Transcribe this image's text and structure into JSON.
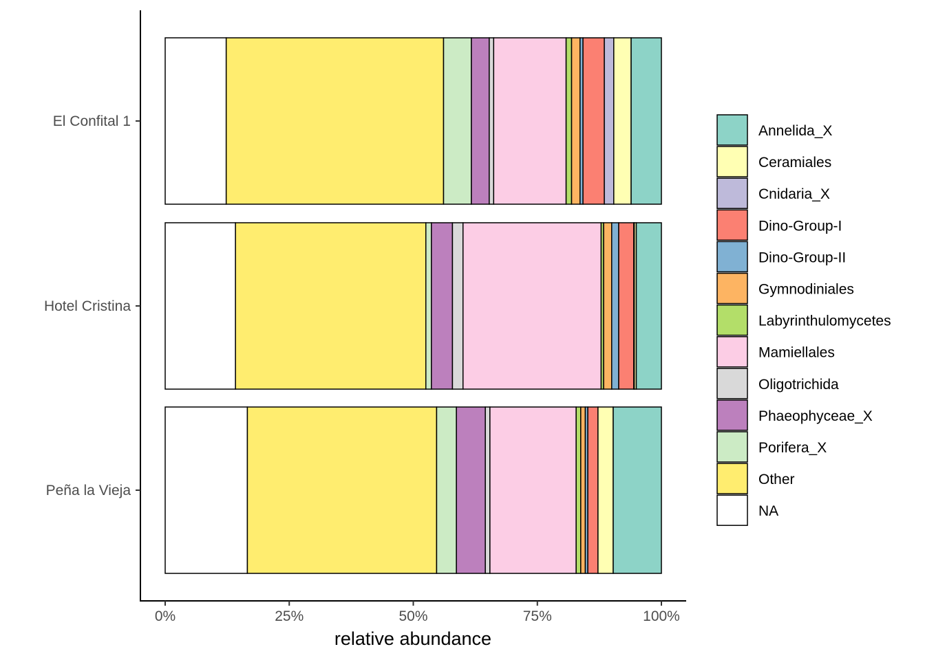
{
  "chart_data": {
    "type": "bar",
    "orientation": "horizontal",
    "stacked": "percent",
    "title": "",
    "xlabel": "relative abundance",
    "ylabel": "",
    "xlim": [
      0,
      100
    ],
    "x_ticks": [
      "0%",
      "25%",
      "50%",
      "75%",
      "100%"
    ],
    "categories": [
      "El Confital 1",
      "Hotel Cristina",
      "Peña la Vieja"
    ],
    "legend_position": "right",
    "stack_order_from_left": [
      "NA",
      "Other",
      "Porifera_X",
      "Phaeophyceae_X",
      "Oligotrichida",
      "Mamiellales",
      "Labyrinthulomycetes",
      "Gymnodiniales",
      "Dino-Group-II",
      "Dino-Group-I",
      "Cnidaria_X",
      "Ceramiales",
      "Annelida_X"
    ],
    "series": [
      {
        "name": "Annelida_X",
        "color": "#8DD3C7",
        "values": [
          6.1,
          5.0,
          9.5
        ]
      },
      {
        "name": "Ceramiales",
        "color": "#FFFFB3",
        "values": [
          3.5,
          0.4,
          3.0
        ]
      },
      {
        "name": "Cnidaria_X",
        "color": "#BEBADA",
        "values": [
          1.9,
          0.1,
          0.0
        ]
      },
      {
        "name": "Dino-Group-I",
        "color": "#FB8072",
        "values": [
          4.3,
          3.0,
          2.0
        ]
      },
      {
        "name": "Dino-Group-II",
        "color": "#80B1D3",
        "values": [
          0.6,
          1.4,
          0.5
        ]
      },
      {
        "name": "Gymnodiniales",
        "color": "#FDB462",
        "values": [
          1.7,
          1.6,
          0.9
        ]
      },
      {
        "name": "Labyrinthulomycetes",
        "color": "#B3DE69",
        "values": [
          1.1,
          0.5,
          0.9
        ]
      },
      {
        "name": "Mamiellales",
        "color": "#FCCDE5",
        "values": [
          14.6,
          27.5,
          17.0
        ]
      },
      {
        "name": "Oligotrichida",
        "color": "#D9D9D9",
        "values": [
          0.9,
          2.1,
          0.9
        ]
      },
      {
        "name": "Phaeophyceae_X",
        "color": "#BC80BD",
        "values": [
          3.6,
          4.2,
          5.7
        ]
      },
      {
        "name": "Porifera_X",
        "color": "#CCEBC5",
        "values": [
          5.6,
          1.1,
          3.9
        ]
      },
      {
        "name": "Other",
        "color": "#FFED6F",
        "values": [
          43.8,
          37.9,
          37.3
        ]
      },
      {
        "name": "NA",
        "color": "#FFFFFF",
        "values": [
          12.3,
          14.0,
          16.2
        ]
      }
    ]
  }
}
